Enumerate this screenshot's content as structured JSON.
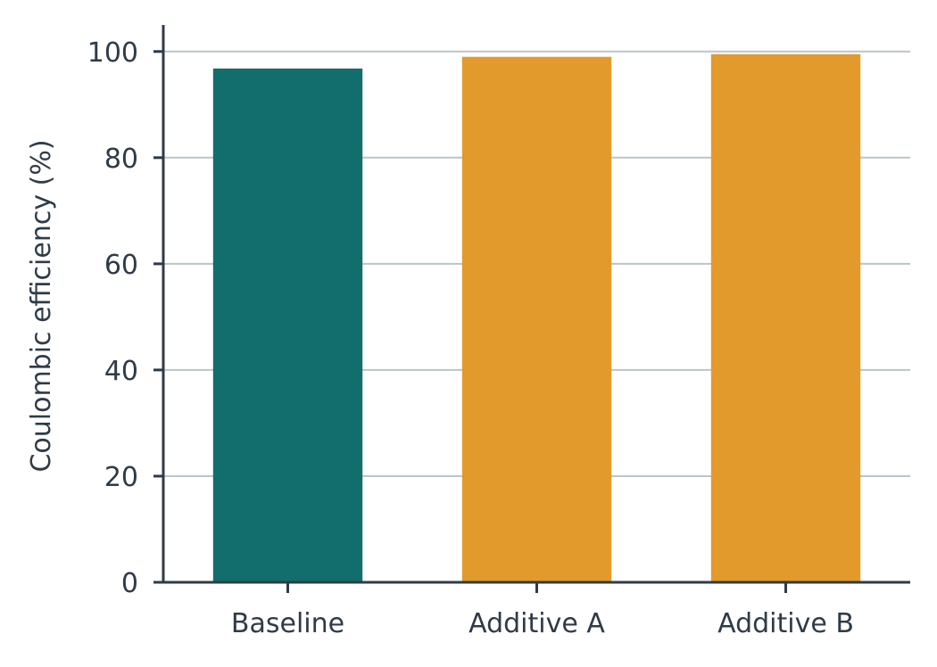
{
  "colors": {
    "axis": "#2f3b47",
    "grid": "#bcc4c9",
    "baseline_bar": "#126e6c",
    "additive_bar": "#e29a2c",
    "background": "#ffffff"
  },
  "chart_data": {
    "type": "bar",
    "title": "",
    "xlabel": "",
    "ylabel": "Coulombic efficiency (%)",
    "categories": [
      "Baseline",
      "Additive A",
      "Additive B"
    ],
    "values": [
      96.8,
      99.0,
      99.5
    ],
    "bar_colors": [
      "#126e6c",
      "#e29a2c",
      "#e29a2c"
    ],
    "ylim": [
      0,
      105
    ],
    "yticks": [
      0,
      20,
      40,
      60,
      80,
      100
    ],
    "ytick_labels": [
      "0",
      "20",
      "40",
      "60",
      "80",
      "100"
    ],
    "grid": "horizontal",
    "legend": "none"
  }
}
